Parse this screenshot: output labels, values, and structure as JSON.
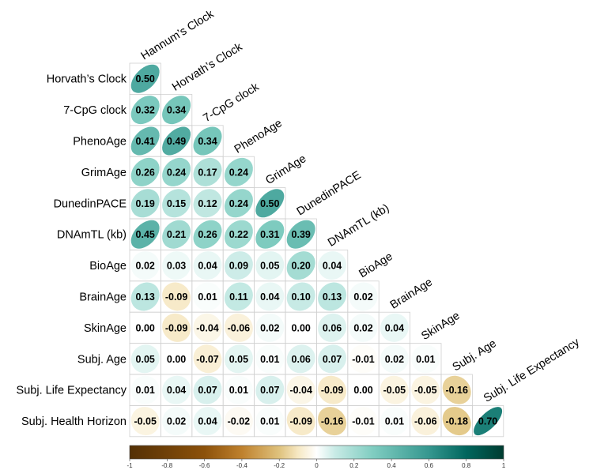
{
  "chart_data": {
    "type": "heatmap",
    "subtype": "lower-triangle correlation matrix with elliptical glyphs",
    "variables": [
      "Hannum’s Clock",
      "Horvath’s Clock",
      "7-CpG clock",
      "PhenoAge",
      "GrimAge",
      "DunedinPACE",
      "DNAmTL (kb)",
      "BioAge",
      "BrainAge",
      "SkinAge",
      "Subj. Age",
      "Subj. Life Expectancy",
      "Subj. Health Horizon"
    ],
    "row_labels": [
      "Horvath’s Clock",
      "7-CpG clock",
      "PhenoAge",
      "GrimAge",
      "DunedinPACE",
      "DNAmTL (kb)",
      "BioAge",
      "BrainAge",
      "SkinAge",
      "Subj. Age",
      "Subj. Life Expectancy",
      "Subj. Health Horizon"
    ],
    "column_labels": [
      "Hannum’s Clock",
      "Horvath’s Clock",
      "7-CpG clock",
      "PhenoAge",
      "GrimAge",
      "DunedinPACE",
      "DNAmTL (kb)",
      "BioAge",
      "BrainAge",
      "SkinAge",
      "Subj. Age",
      "Subj. Life Expectancy"
    ],
    "values": [
      [
        0.5
      ],
      [
        0.32,
        0.34
      ],
      [
        0.41,
        0.49,
        0.34
      ],
      [
        0.26,
        0.24,
        0.17,
        0.24
      ],
      [
        0.19,
        0.15,
        0.12,
        0.24,
        0.5
      ],
      [
        0.45,
        0.21,
        0.26,
        0.22,
        0.31,
        0.39
      ],
      [
        0.02,
        0.03,
        0.04,
        0.09,
        0.05,
        0.2,
        0.04
      ],
      [
        0.13,
        -0.09,
        0.01,
        0.11,
        0.04,
        0.1,
        0.13,
        0.02
      ],
      [
        0.0,
        -0.09,
        -0.04,
        -0.06,
        0.02,
        0.0,
        0.06,
        0.02,
        0.04
      ],
      [
        0.05,
        0.0,
        -0.07,
        0.05,
        0.01,
        0.06,
        0.07,
        -0.01,
        0.02,
        0.01
      ],
      [
        0.01,
        0.04,
        0.07,
        0.01,
        0.07,
        -0.04,
        -0.09,
        0.0,
        -0.05,
        -0.05,
        -0.16
      ],
      [
        -0.05,
        0.02,
        0.04,
        -0.02,
        0.01,
        -0.09,
        -0.16,
        -0.01,
        0.01,
        -0.06,
        -0.18,
        0.7
      ]
    ],
    "value_range": [
      -1,
      1
    ],
    "colorbar": {
      "position": "bottom",
      "ticks": [
        "-1",
        "-0.8",
        "-0.6",
        "-0.4",
        "-0.2",
        "0",
        "0.2",
        "0.4",
        "0.6",
        "0.8",
        "1"
      ],
      "colors": {
        "negative": "#543005",
        "neg_mid": "#bf812d",
        "neg_light": "#f6e8c3",
        "neutral": "#ffffff",
        "pos_light": "#c7eae5",
        "pos_mid": "#35978f",
        "positive": "#003c30"
      }
    },
    "grid": true,
    "title": "",
    "xlabel": "",
    "ylabel": ""
  }
}
